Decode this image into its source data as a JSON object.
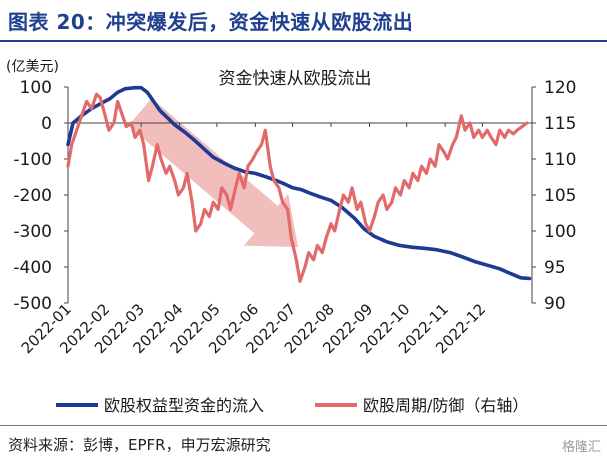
{
  "figure_title": "图表 20：冲突爆发后，资金快速从欧股流出",
  "source_text": "资料来源：彭博，EPFR，申万宏源研究",
  "watermark": "格隆汇",
  "colors": {
    "title": "#1f3f8f",
    "flow_line": "#1f3a93",
    "ratio_line": "#e26a6a",
    "arrow": "#f0b2b2"
  },
  "chart_data": {
    "type": "line",
    "title": "资金快速从欧股流出",
    "left_axis": {
      "unit_label": "(亿美元)",
      "ylim": [
        -500,
        100
      ],
      "ticks": [
        100,
        0,
        -100,
        -200,
        -300,
        -400,
        -500
      ]
    },
    "right_axis": {
      "ylim": [
        90,
        120
      ],
      "ticks": [
        120,
        115,
        110,
        105,
        100,
        95,
        90
      ]
    },
    "x_ticks": [
      "2022-01",
      "2022-02",
      "2022-03",
      "2022-04",
      "2022-05",
      "2022-06",
      "2022-07",
      "2022-08",
      "2022-09",
      "2022-10",
      "2022-11",
      "2022-12"
    ],
    "legend_position": "bottom",
    "series": [
      {
        "name": "欧股权益型资金的流入",
        "axis": "left",
        "color": "#1f3a93",
        "points": [
          [
            "2022-01-01",
            -60
          ],
          [
            "2022-01-05",
            0
          ],
          [
            "2022-01-12",
            20
          ],
          [
            "2022-01-20",
            40
          ],
          [
            "2022-01-28",
            55
          ],
          [
            "2022-02-04",
            68
          ],
          [
            "2022-02-10",
            85
          ],
          [
            "2022-02-16",
            95
          ],
          [
            "2022-02-24",
            98
          ],
          [
            "2022-03-01",
            98
          ],
          [
            "2022-03-06",
            85
          ],
          [
            "2022-03-11",
            60
          ],
          [
            "2022-03-16",
            35
          ],
          [
            "2022-03-22",
            15
          ],
          [
            "2022-03-28",
            -5
          ],
          [
            "2022-04-05",
            -25
          ],
          [
            "2022-04-12",
            -45
          ],
          [
            "2022-04-20",
            -70
          ],
          [
            "2022-04-28",
            -95
          ],
          [
            "2022-05-06",
            -110
          ],
          [
            "2022-05-15",
            -125
          ],
          [
            "2022-05-23",
            -135
          ],
          [
            "2022-06-01",
            -140
          ],
          [
            "2022-06-10",
            -150
          ],
          [
            "2022-06-18",
            -160
          ],
          [
            "2022-06-25",
            -170
          ],
          [
            "2022-07-01",
            -180
          ],
          [
            "2022-07-08",
            -185
          ],
          [
            "2022-07-15",
            -195
          ],
          [
            "2022-07-23",
            -205
          ],
          [
            "2022-08-01",
            -215
          ],
          [
            "2022-08-10",
            -235
          ],
          [
            "2022-08-20",
            -265
          ],
          [
            "2022-08-28",
            -295
          ],
          [
            "2022-09-05",
            -315
          ],
          [
            "2022-09-15",
            -330
          ],
          [
            "2022-09-25",
            -340
          ],
          [
            "2022-10-05",
            -345
          ],
          [
            "2022-10-15",
            -348
          ],
          [
            "2022-10-25",
            -352
          ],
          [
            "2022-11-05",
            -360
          ],
          [
            "2022-11-15",
            -372
          ],
          [
            "2022-11-25",
            -385
          ],
          [
            "2022-12-05",
            -395
          ],
          [
            "2022-12-15",
            -405
          ],
          [
            "2022-12-25",
            -420
          ],
          [
            "2023-01-01",
            -430
          ],
          [
            "2023-01-08",
            -432
          ]
        ]
      },
      {
        "name": "欧股周期/防御（右轴）",
        "axis": "right",
        "color": "#e26a6a",
        "points": [
          [
            "2022-01-01",
            109
          ],
          [
            "2022-01-04",
            112
          ],
          [
            "2022-01-08",
            114
          ],
          [
            "2022-01-12",
            116
          ],
          [
            "2022-01-16",
            118
          ],
          [
            "2022-01-20",
            117
          ],
          [
            "2022-01-24",
            119
          ],
          [
            "2022-01-27",
            118.5
          ],
          [
            "2022-01-31",
            116
          ],
          [
            "2022-02-03",
            114
          ],
          [
            "2022-02-07",
            115
          ],
          [
            "2022-02-10",
            118
          ],
          [
            "2022-02-14",
            116
          ],
          [
            "2022-02-17",
            114.5
          ],
          [
            "2022-02-21",
            115
          ],
          [
            "2022-02-24",
            113
          ],
          [
            "2022-02-28",
            114
          ],
          [
            "2022-03-03",
            112
          ],
          [
            "2022-03-07",
            107
          ],
          [
            "2022-03-10",
            109
          ],
          [
            "2022-03-14",
            112
          ],
          [
            "2022-03-17",
            110
          ],
          [
            "2022-03-21",
            108
          ],
          [
            "2022-03-24",
            109
          ],
          [
            "2022-03-28",
            107
          ],
          [
            "2022-03-31",
            105
          ],
          [
            "2022-04-04",
            106
          ],
          [
            "2022-04-07",
            108
          ],
          [
            "2022-04-11",
            104
          ],
          [
            "2022-04-14",
            100
          ],
          [
            "2022-04-18",
            101
          ],
          [
            "2022-04-21",
            103
          ],
          [
            "2022-04-25",
            102
          ],
          [
            "2022-04-28",
            104
          ],
          [
            "2022-05-02",
            103
          ],
          [
            "2022-05-05",
            106
          ],
          [
            "2022-05-09",
            105
          ],
          [
            "2022-05-12",
            103
          ],
          [
            "2022-05-16",
            106
          ],
          [
            "2022-05-19",
            108
          ],
          [
            "2022-05-23",
            106
          ],
          [
            "2022-05-26",
            109
          ],
          [
            "2022-05-30",
            110
          ],
          [
            "2022-06-02",
            111
          ],
          [
            "2022-06-06",
            112
          ],
          [
            "2022-06-09",
            114
          ],
          [
            "2022-06-13",
            109
          ],
          [
            "2022-06-16",
            107
          ],
          [
            "2022-06-20",
            106
          ],
          [
            "2022-06-23",
            104
          ],
          [
            "2022-06-27",
            103
          ],
          [
            "2022-06-30",
            99
          ],
          [
            "2022-07-04",
            96
          ],
          [
            "2022-07-07",
            93
          ],
          [
            "2022-07-11",
            95
          ],
          [
            "2022-07-14",
            97
          ],
          [
            "2022-07-18",
            96
          ],
          [
            "2022-07-21",
            98
          ],
          [
            "2022-07-25",
            97
          ],
          [
            "2022-07-28",
            99
          ],
          [
            "2022-08-01",
            101
          ],
          [
            "2022-08-04",
            100
          ],
          [
            "2022-08-08",
            103
          ],
          [
            "2022-08-11",
            105
          ],
          [
            "2022-08-15",
            104
          ],
          [
            "2022-08-18",
            106
          ],
          [
            "2022-08-22",
            103
          ],
          [
            "2022-08-25",
            104
          ],
          [
            "2022-08-29",
            101
          ],
          [
            "2022-09-01",
            100
          ],
          [
            "2022-09-05",
            102
          ],
          [
            "2022-09-08",
            104
          ],
          [
            "2022-09-12",
            105
          ],
          [
            "2022-09-15",
            103
          ],
          [
            "2022-09-19",
            104
          ],
          [
            "2022-09-22",
            106
          ],
          [
            "2022-09-26",
            105
          ],
          [
            "2022-09-29",
            107
          ],
          [
            "2022-10-03",
            106
          ],
          [
            "2022-10-06",
            108
          ],
          [
            "2022-10-10",
            107
          ],
          [
            "2022-10-13",
            109
          ],
          [
            "2022-10-17",
            108
          ],
          [
            "2022-10-20",
            110
          ],
          [
            "2022-10-24",
            109
          ],
          [
            "2022-10-27",
            112
          ],
          [
            "2022-10-31",
            111
          ],
          [
            "2022-11-03",
            110
          ],
          [
            "2022-11-07",
            112
          ],
          [
            "2022-11-10",
            113
          ],
          [
            "2022-11-14",
            116
          ],
          [
            "2022-11-17",
            114
          ],
          [
            "2022-11-21",
            115
          ],
          [
            "2022-11-24",
            113
          ],
          [
            "2022-11-28",
            114
          ],
          [
            "2022-12-01",
            113
          ],
          [
            "2022-12-05",
            114
          ],
          [
            "2022-12-08",
            113
          ],
          [
            "2022-12-12",
            112
          ],
          [
            "2022-12-15",
            114
          ],
          [
            "2022-12-19",
            113
          ],
          [
            "2022-12-22",
            114
          ],
          [
            "2022-12-26",
            113.5
          ],
          [
            "2022-12-29",
            114
          ],
          [
            "2023-01-02",
            114.5
          ],
          [
            "2023-01-06",
            115
          ]
        ]
      }
    ]
  }
}
